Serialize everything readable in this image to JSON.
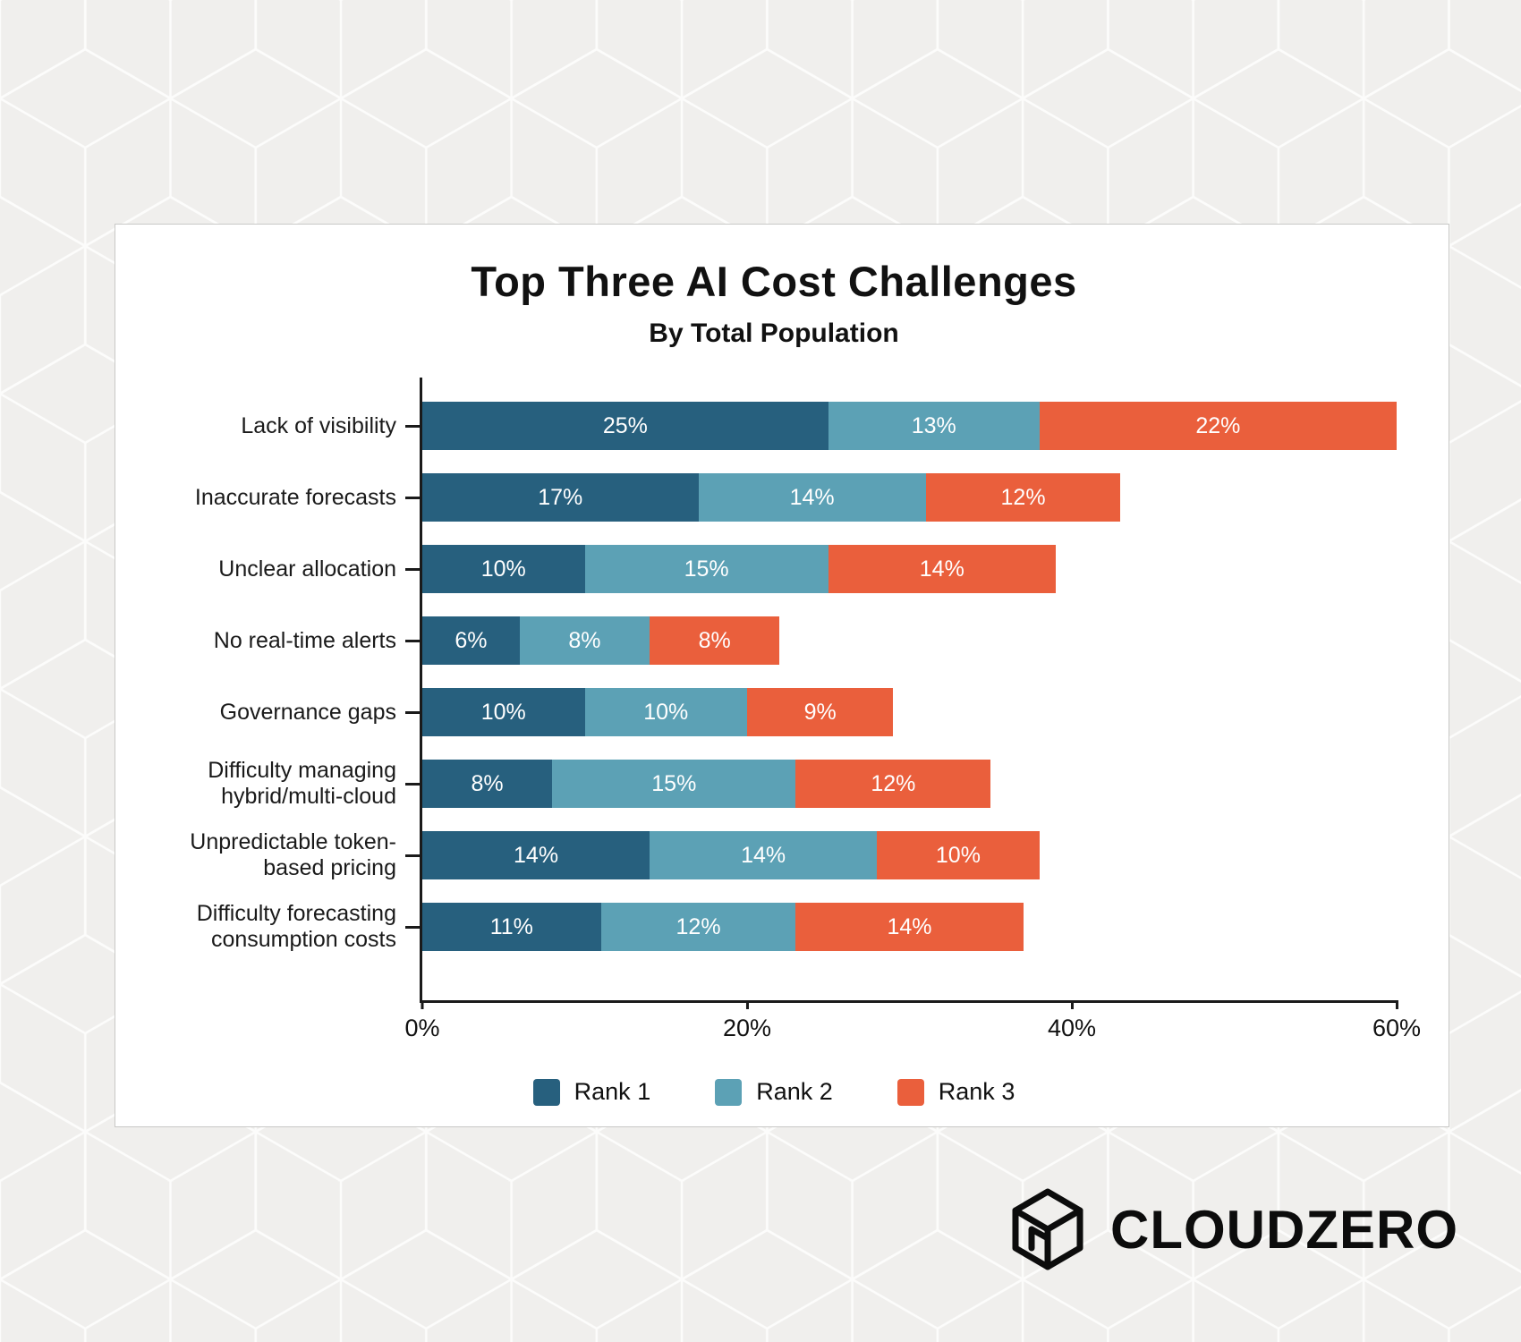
{
  "chart_data": {
    "type": "bar",
    "stacked": true,
    "orientation": "horizontal",
    "title": "Top Three AI Cost Challenges",
    "subtitle": "By Total Population",
    "categories": [
      "Lack of visibility",
      "Inaccurate forecasts",
      "Unclear allocation",
      "No real-time alerts",
      "Governance gaps",
      "Difficulty managing hybrid/multi-cloud",
      "Unpredictable token-based pricing",
      "Difficulty forecasting consumption costs"
    ],
    "series": [
      {
        "name": "Rank 1",
        "color": "#27607e",
        "values": [
          25,
          17,
          10,
          6,
          10,
          8,
          14,
          11
        ]
      },
      {
        "name": "Rank 2",
        "color": "#5ca1b5",
        "values": [
          13,
          14,
          15,
          8,
          10,
          15,
          14,
          12
        ]
      },
      {
        "name": "Rank 3",
        "color": "#ea5f3c",
        "values": [
          22,
          12,
          14,
          8,
          9,
          12,
          10,
          14
        ]
      }
    ],
    "xlim": [
      0,
      60
    ],
    "x_tick_values": [
      0,
      20,
      40,
      60
    ],
    "x_tick_labels": [
      "0%",
      "20%",
      "40%",
      "60%"
    ],
    "value_suffix": "%",
    "grid": false,
    "legend_position": "bottom"
  },
  "logo": {
    "text": "CLOUDZERO"
  },
  "colors": {
    "page_background": "#f0efed",
    "card_background": "#ffffff",
    "axis": "#1a1a1a",
    "bar_label_text": "#ffffff"
  }
}
